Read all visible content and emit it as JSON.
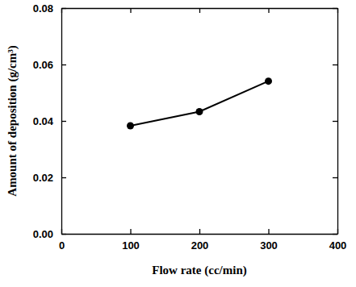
{
  "chart_data": {
    "type": "line",
    "x_label": "Flow rate (cc/min)",
    "y_label": "Amount of deposition (g/cm³)",
    "x": [
      100,
      200,
      300
    ],
    "values": [
      0.0383,
      0.0433,
      0.0541
    ],
    "color": "#000000",
    "marker": "circle",
    "xlim": [
      0,
      400
    ],
    "xticks": [
      0,
      100,
      200,
      300,
      400
    ],
    "ylim": [
      0,
      0.08
    ],
    "yticks": [
      {
        "value": 0,
        "label": "0.00"
      },
      {
        "value": 0.02,
        "label": "0.02"
      },
      {
        "value": 0.04,
        "label": "0.04"
      },
      {
        "value": 0.06,
        "label": "0.06"
      },
      {
        "value": 0.08,
        "label": "0.08"
      }
    ]
  }
}
